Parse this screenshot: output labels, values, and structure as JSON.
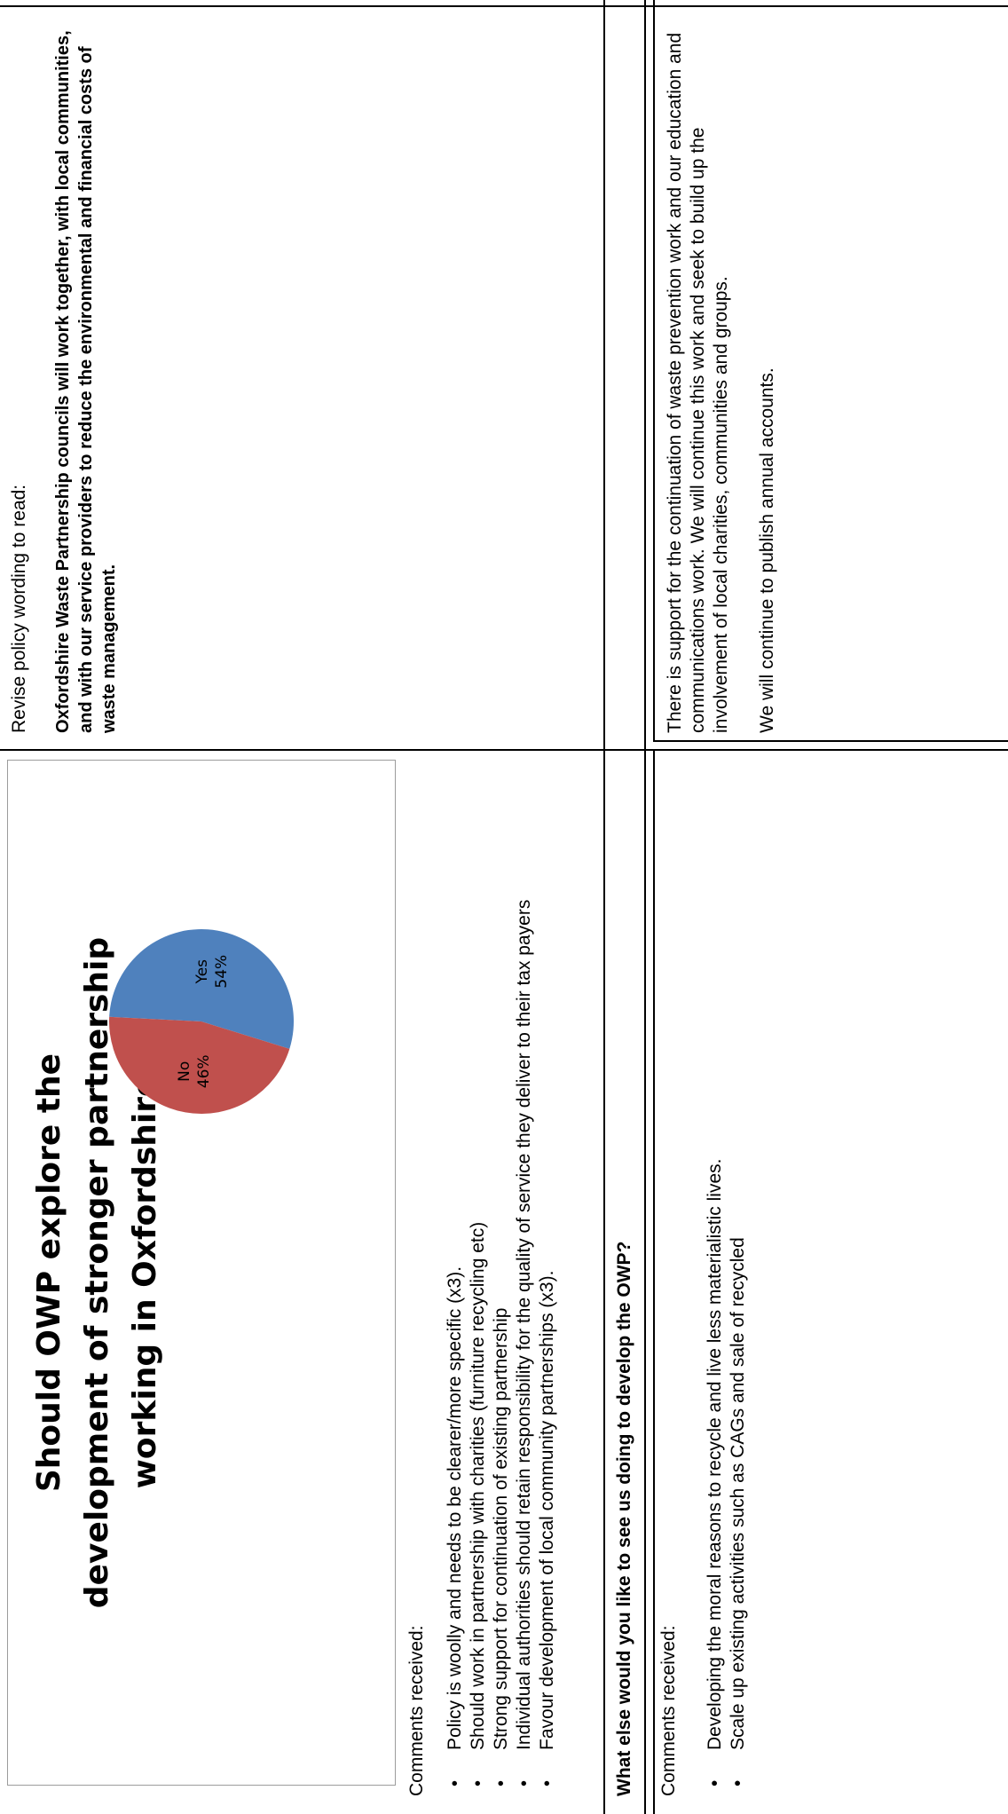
{
  "chart_block": {
    "title_lines": [
      "Should OWP explore the",
      "development of stronger partnership",
      "working in Oxfordshire?"
    ]
  },
  "chart_data": {
    "type": "pie",
    "title": "Should OWP explore the development of stronger partnership working in Oxfordshire?",
    "slices": [
      {
        "label": "Yes",
        "value": 54,
        "display": "54%",
        "color": "#4f81bd"
      },
      {
        "label": "No",
        "value": 46,
        "display": "46%",
        "color": "#c0504d"
      }
    ]
  },
  "section1": {
    "comments_label": "Comments received:",
    "bullets": [
      "Policy is woolly and needs to be clearer/more specific (x3).",
      "Should work in partnership with charities (furniture recycling etc)",
      "Strong support for continuation of existing partnership",
      "Individual authorities should retain responsibility for the quality of service they deliver to their tax payers",
      "Favour development of local community partnerships (x3)."
    ],
    "response_label": "Revise policy wording to read:",
    "policy_text": "Oxfordshire Waste Partnership councils will work together, with local communities, and with our service providers to reduce the environmental and financial costs of waste management."
  },
  "section2": {
    "question": "What else would you like to see us doing to develop the OWP?",
    "comments_label": "Comments received:",
    "bullets": [
      "Developing the moral reasons to recycle and live less materialistic lives.",
      "Scale up existing activities such as CAGs and sale of recycled"
    ],
    "response_1": "There is support for the continuation of waste prevention work and our education and communications work. We will continue this work and seek to build up the involvement of local charities, communities and groups.",
    "response_2": "We will continue to publish annual accounts."
  }
}
